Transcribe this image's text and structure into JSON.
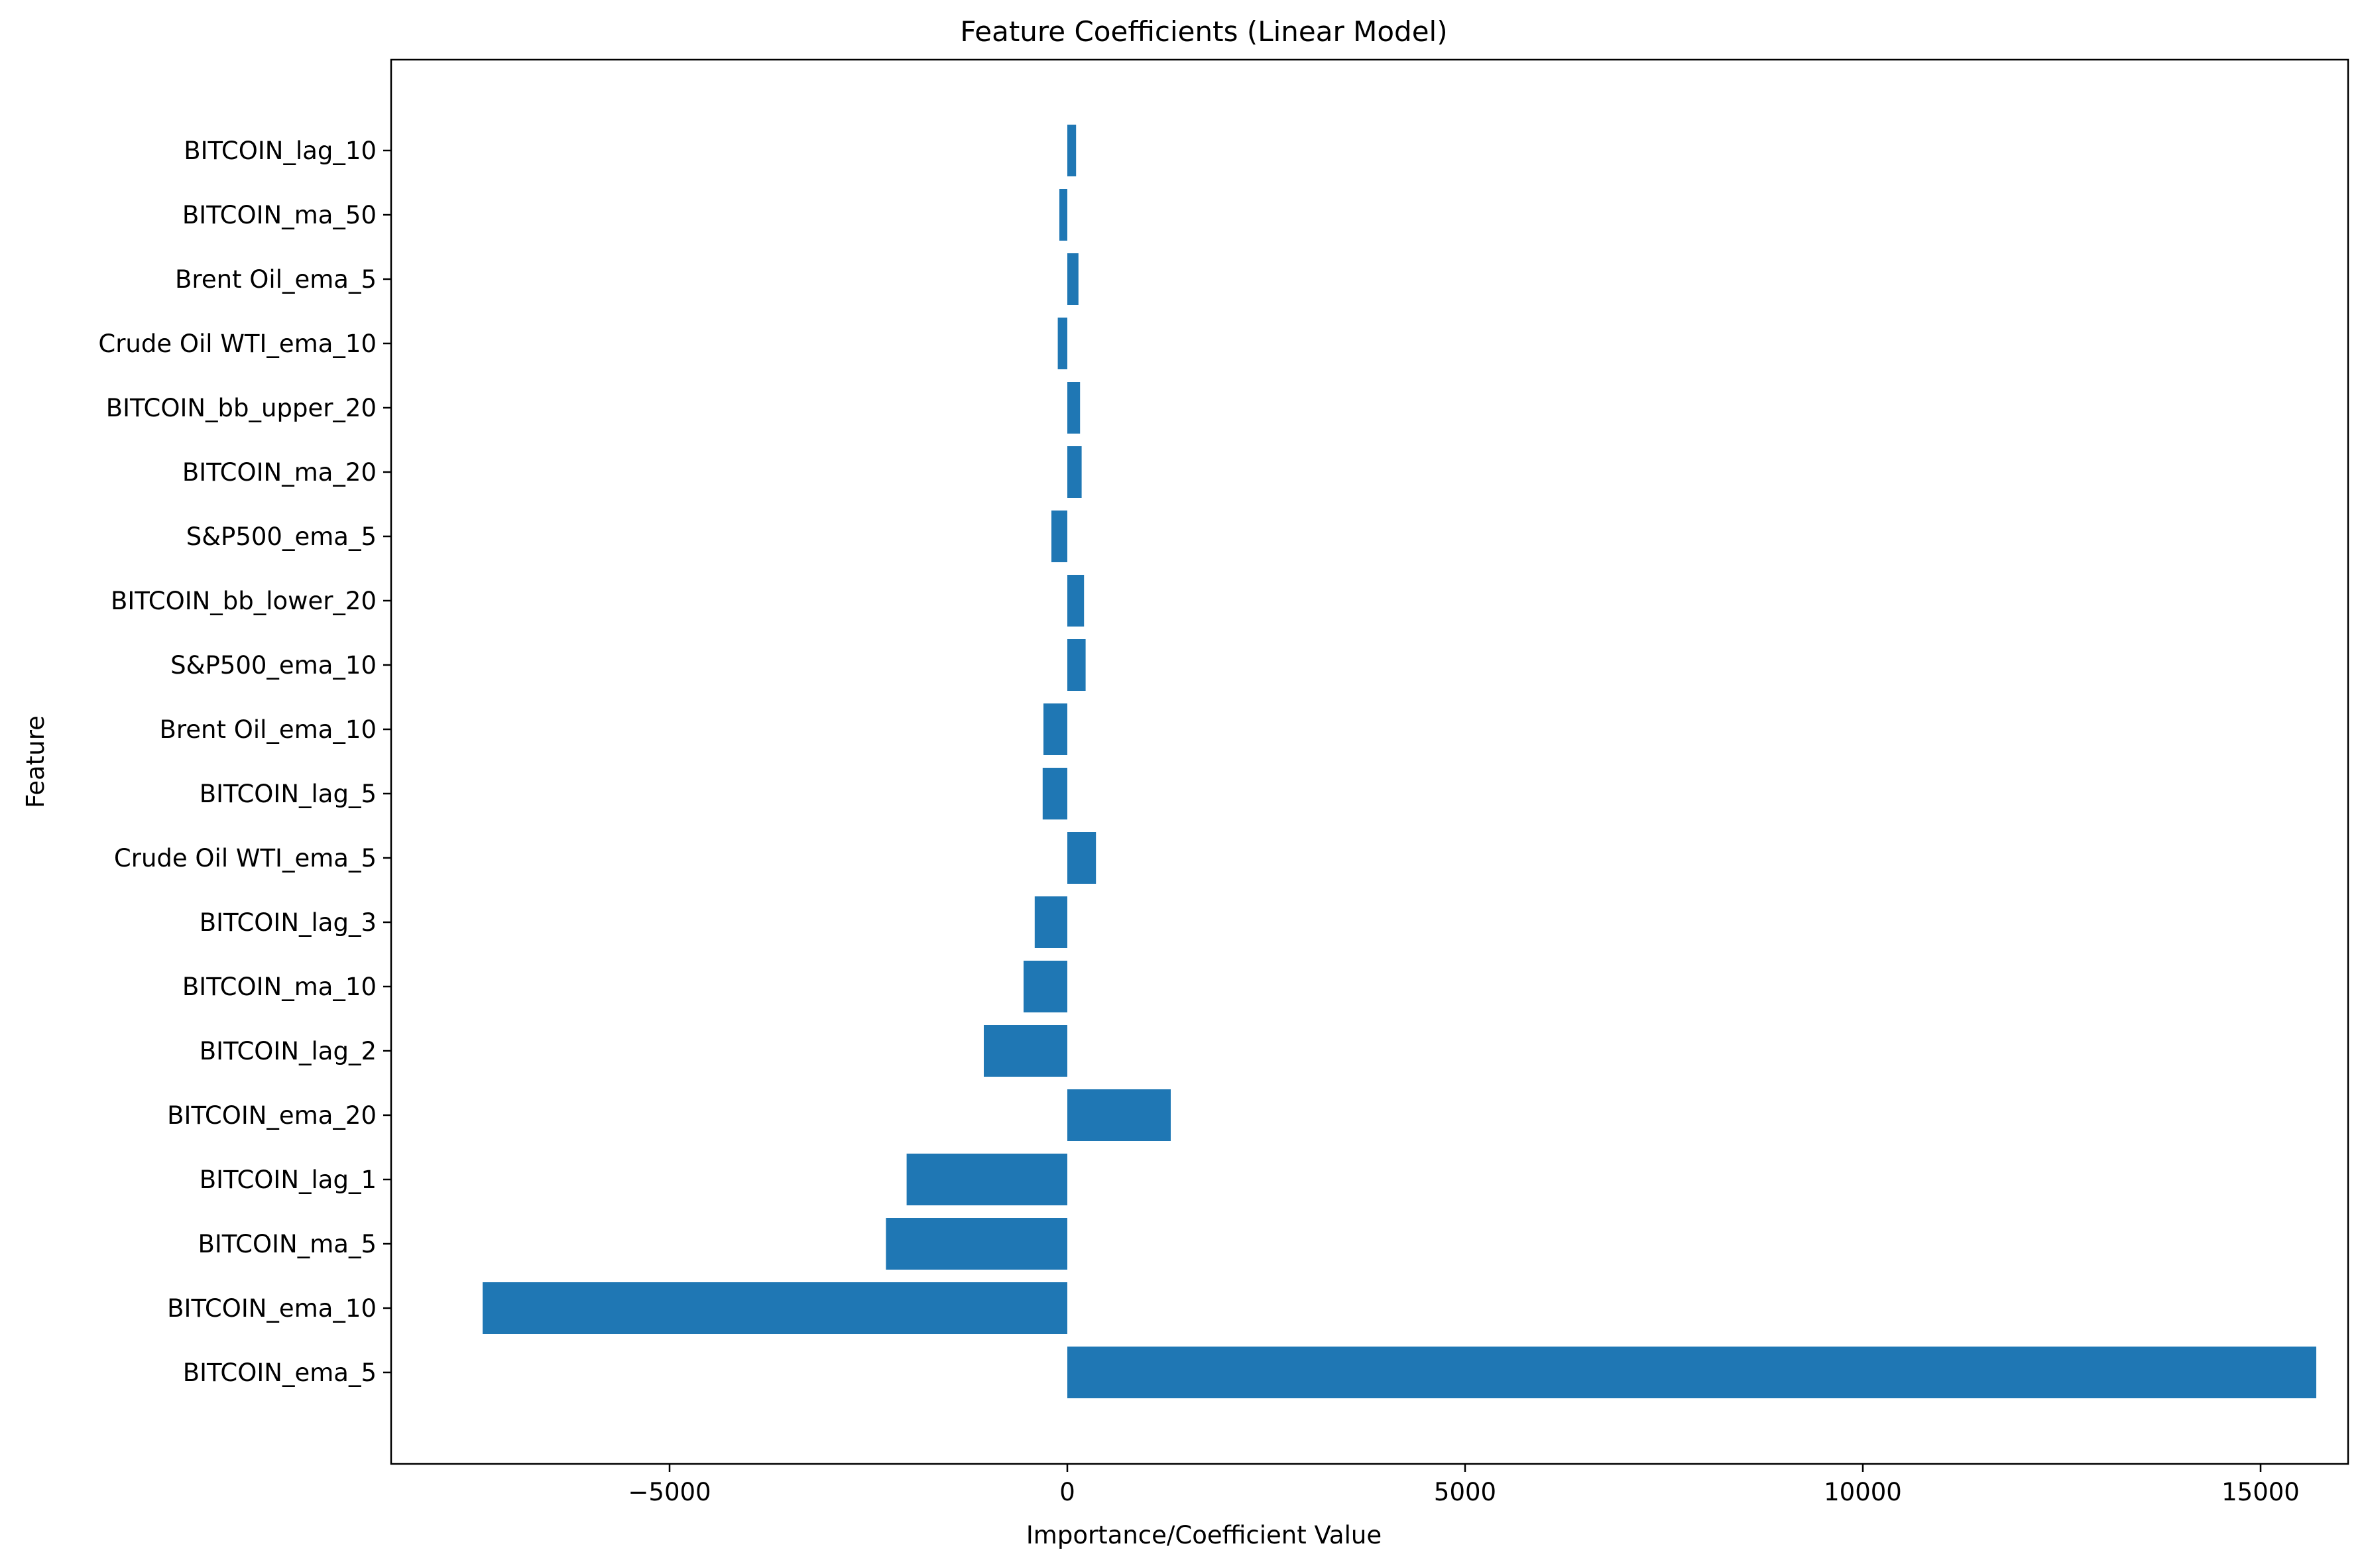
{
  "chart_data": {
    "type": "bar",
    "orientation": "horizontal",
    "title": "Feature Coefficients (Linear Model)",
    "xlabel": "Importance/Coefficient Value",
    "ylabel": "Feature",
    "xlim": [
      -8500,
      16100
    ],
    "xticks": [
      -5000,
      0,
      5000,
      10000,
      15000
    ],
    "xtick_labels": [
      "−5000",
      "0",
      "5000",
      "10000",
      "15000"
    ],
    "grid": false,
    "bar_color": "#1f77b4",
    "categories": [
      "BITCOIN_lag_10",
      "BITCOIN_ma_50",
      "Brent Oil_ema_5",
      "Crude Oil WTI_ema_10",
      "BITCOIN_bb_upper_20",
      "BITCOIN_ma_20",
      "S&P500_ema_5",
      "BITCOIN_bb_lower_20",
      "S&P500_ema_10",
      "Brent Oil_ema_10",
      "BITCOIN_lag_5",
      "Crude Oil WTI_ema_5",
      "BITCOIN_lag_3",
      "BITCOIN_ma_10",
      "BITCOIN_lag_2",
      "BITCOIN_ema_20",
      "BITCOIN_lag_1",
      "BITCOIN_ma_5",
      "BITCOIN_ema_10",
      "BITCOIN_ema_5"
    ],
    "values": [
      110,
      -100,
      140,
      -120,
      160,
      180,
      -200,
      210,
      230,
      -300,
      -310,
      360,
      -410,
      -550,
      -1050,
      1300,
      -2020,
      -2280,
      -7350,
      15700
    ]
  }
}
